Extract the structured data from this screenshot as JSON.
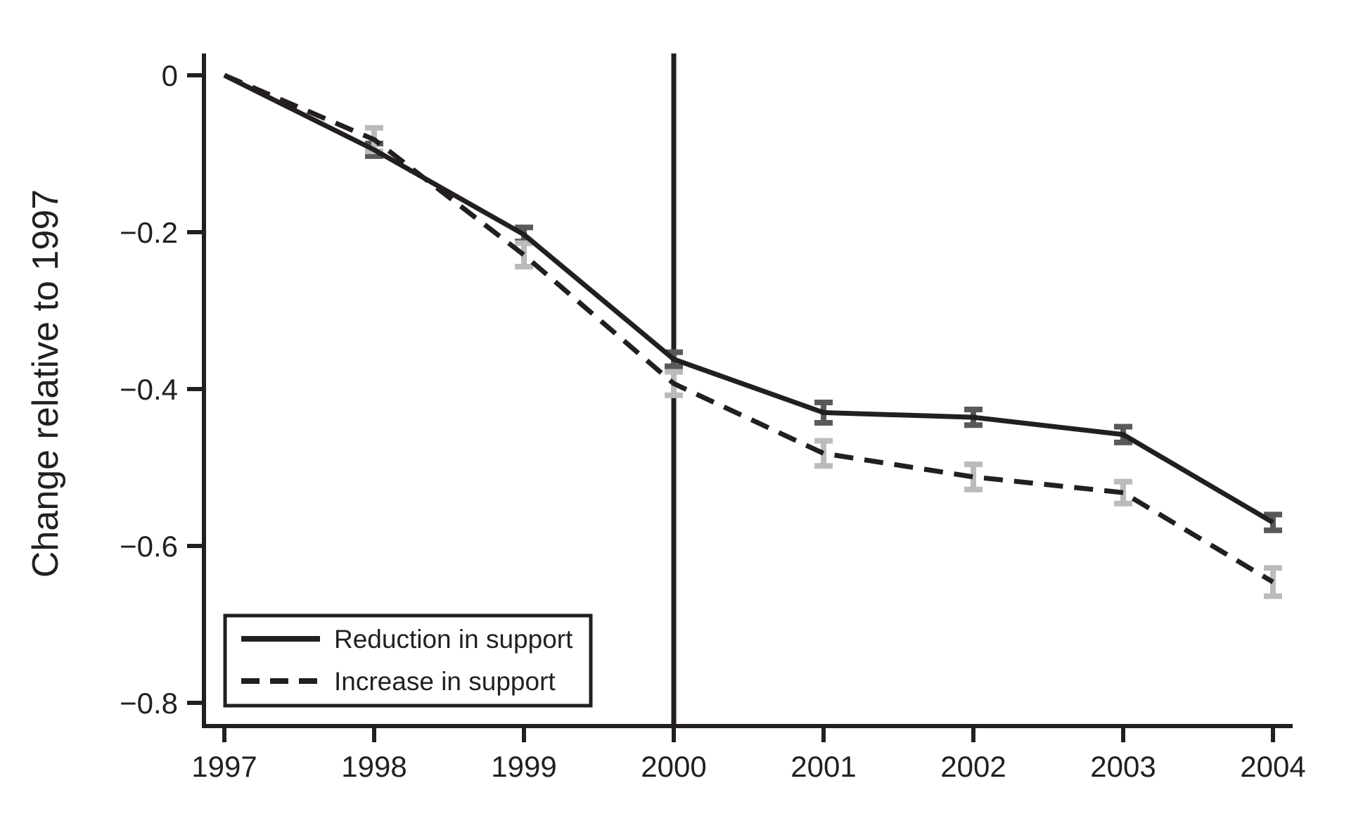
{
  "figure": {
    "background": "#ffffff",
    "ink_color": "#231f20"
  },
  "chart_data": {
    "type": "line",
    "title": "",
    "xlabel": "",
    "ylabel": "Change relative to 1997",
    "x": [
      1997,
      1998,
      1999,
      2000,
      2001,
      2002,
      2003,
      2004
    ],
    "x_tick_labels": [
      "1997",
      "1998",
      "1999",
      "2000",
      "2001",
      "2002",
      "2003",
      "2004"
    ],
    "y_ticks": [
      0,
      -0.2,
      -0.4,
      -0.6,
      -0.8
    ],
    "y_tick_labels": [
      "0",
      "−0.2",
      "−0.4",
      "−0.6",
      "−0.8"
    ],
    "xlim": [
      1996.86,
      2004.13
    ],
    "ylim": [
      -0.83,
      0.026
    ],
    "grid": "off",
    "reference_line_x": 2000,
    "legend_position": "bottom-left",
    "series": [
      {
        "name": "Reduction in support",
        "style": "solid",
        "line_color": "#231f20",
        "error_bar_color": "#58595b",
        "values": [
          0,
          -0.095,
          -0.203,
          -0.362,
          -0.43,
          -0.436,
          -0.458,
          -0.57
        ],
        "errors": [
          0,
          0.008,
          0.009,
          0.009,
          0.013,
          0.01,
          0.01,
          0.01
        ]
      },
      {
        "name": "Increase in support",
        "style": "dashed",
        "line_color": "#231f20",
        "error_bar_color": "#b9bbbd",
        "values": [
          0,
          -0.082,
          -0.229,
          -0.393,
          -0.482,
          -0.512,
          -0.532,
          -0.646
        ],
        "errors": [
          0,
          0.015,
          0.015,
          0.015,
          0.016,
          0.016,
          0.014,
          0.018
        ]
      }
    ]
  }
}
